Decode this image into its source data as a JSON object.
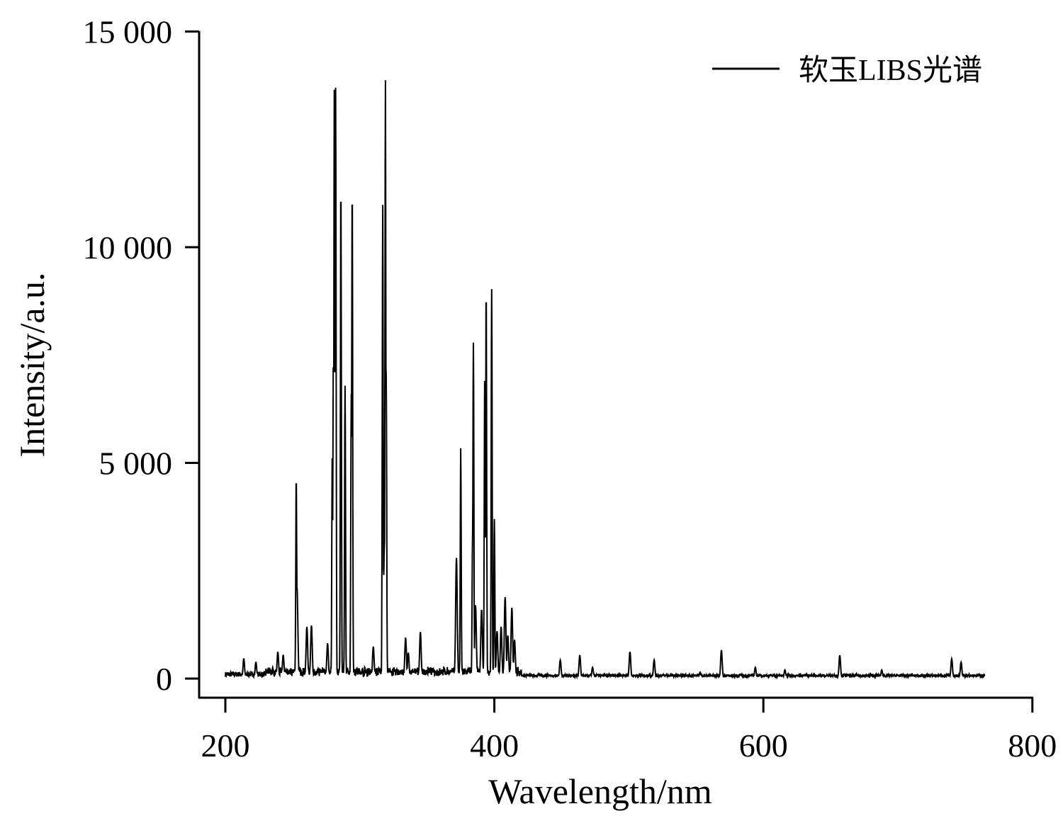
{
  "chart_data": {
    "type": "line",
    "title": "",
    "xlabel": "Wavelength/nm",
    "ylabel": "Intensity/a.u.",
    "xlim": [
      180,
      800
    ],
    "ylim": [
      -450,
      15000
    ],
    "x_ticks": [
      200,
      400,
      600,
      800
    ],
    "x_tick_labels": [
      "200",
      "400",
      "600",
      "800"
    ],
    "y_ticks": [
      0,
      5000,
      10000,
      15000
    ],
    "y_tick_labels": [
      "0",
      "5 000",
      "10 000",
      "15 000"
    ],
    "grid": false,
    "legend_position": "top-right",
    "x_range_of_data": [
      200,
      765
    ],
    "series": [
      {
        "name": "软玉LIBS光谱",
        "color": "#000000",
        "peaks": [
          {
            "x": 213.7,
            "y": 460
          },
          {
            "x": 222.7,
            "y": 380
          },
          {
            "x": 239,
            "y": 620
          },
          {
            "x": 243,
            "y": 550
          },
          {
            "x": 252.7,
            "y": 4700
          },
          {
            "x": 253.3,
            "y": 2100
          },
          {
            "x": 260.6,
            "y": 1200
          },
          {
            "x": 264,
            "y": 1230
          },
          {
            "x": 276,
            "y": 820
          },
          {
            "x": 279.5,
            "y": 5300
          },
          {
            "x": 280.3,
            "y": 7500
          },
          {
            "x": 281,
            "y": 13650
          },
          {
            "x": 282,
            "y": 13700
          },
          {
            "x": 285.9,
            "y": 11500
          },
          {
            "x": 289,
            "y": 6790
          },
          {
            "x": 294.3,
            "y": 11430
          },
          {
            "x": 293.6,
            "y": 6600
          },
          {
            "x": 310,
            "y": 740
          },
          {
            "x": 317,
            "y": 10980
          },
          {
            "x": 319,
            "y": 13870
          },
          {
            "x": 319.6,
            "y": 7000
          },
          {
            "x": 318.2,
            "y": 3000
          },
          {
            "x": 334,
            "y": 950
          },
          {
            "x": 336,
            "y": 600
          },
          {
            "x": 345,
            "y": 1080
          },
          {
            "x": 371.8,
            "y": 2800
          },
          {
            "x": 375,
            "y": 5340
          },
          {
            "x": 383.8,
            "y": 3400
          },
          {
            "x": 384.4,
            "y": 7790
          },
          {
            "x": 386,
            "y": 1700
          },
          {
            "x": 390.5,
            "y": 1600
          },
          {
            "x": 392.8,
            "y": 6900
          },
          {
            "x": 393.9,
            "y": 9070
          },
          {
            "x": 398,
            "y": 9030
          },
          {
            "x": 400,
            "y": 3700
          },
          {
            "x": 402,
            "y": 1100
          },
          {
            "x": 405,
            "y": 1200
          },
          {
            "x": 408,
            "y": 1890
          },
          {
            "x": 410,
            "y": 1000
          },
          {
            "x": 413,
            "y": 1640
          },
          {
            "x": 415,
            "y": 900
          },
          {
            "x": 449,
            "y": 430
          },
          {
            "x": 463.5,
            "y": 540
          },
          {
            "x": 473,
            "y": 260
          },
          {
            "x": 500.8,
            "y": 620
          },
          {
            "x": 518.8,
            "y": 430
          },
          {
            "x": 553,
            "y": 150
          },
          {
            "x": 568.8,
            "y": 660
          },
          {
            "x": 594,
            "y": 260
          },
          {
            "x": 616,
            "y": 200
          },
          {
            "x": 656.8,
            "y": 540
          },
          {
            "x": 688,
            "y": 200
          },
          {
            "x": 740,
            "y": 460
          },
          {
            "x": 747,
            "y": 380
          }
        ]
      }
    ]
  }
}
